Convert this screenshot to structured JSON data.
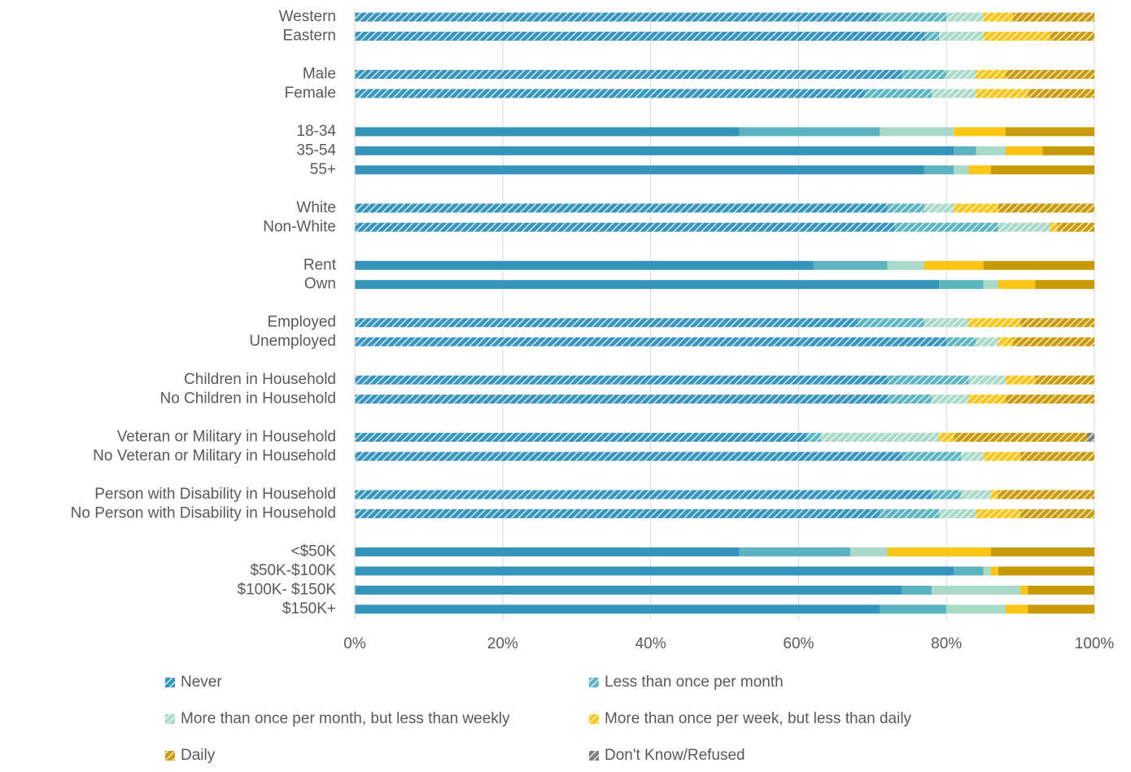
{
  "chart_data": {
    "type": "stacked_bar_horizontal",
    "categories": [
      "Western",
      "Eastern",
      null,
      "Male",
      "Female",
      null,
      "18-34",
      "35-54",
      "55+",
      null,
      "White",
      "Non-White",
      null,
      "Rent",
      "Own",
      null,
      "Employed",
      "Unemployed",
      null,
      "Children in Household",
      "No Children in Household",
      null,
      "Veteran or Military in Household",
      "No Veteran or Military in Household",
      null,
      "Person with Disability in Household",
      "No Person with Disability in Household",
      null,
      "<$50K",
      "$50K-$100K",
      "$100K- $150K",
      "$150K+"
    ],
    "hatched": [
      true,
      true,
      null,
      true,
      true,
      null,
      false,
      false,
      false,
      null,
      true,
      true,
      null,
      false,
      false,
      null,
      true,
      true,
      null,
      true,
      true,
      null,
      true,
      true,
      null,
      true,
      true,
      null,
      false,
      false,
      false,
      false
    ],
    "series": [
      {
        "name": "Never",
        "color": "#3594ba",
        "values": [
          71,
          77,
          null,
          74,
          69,
          null,
          52,
          81,
          77,
          null,
          72,
          73,
          null,
          62,
          79,
          null,
          68,
          80,
          null,
          72,
          72,
          null,
          61,
          74,
          null,
          78,
          71,
          null,
          52,
          81,
          74,
          71
        ]
      },
      {
        "name": "Less than once per month",
        "color": "#5bb4c0",
        "values": [
          9,
          2,
          null,
          6,
          9,
          null,
          19,
          3,
          4,
          null,
          5,
          14,
          null,
          10,
          6,
          null,
          9,
          4,
          null,
          11,
          6,
          null,
          2,
          8,
          null,
          4,
          8,
          null,
          15,
          4,
          4,
          9
        ]
      },
      {
        "name": "More than once per month, but less than weekly",
        "color": "#a9d9c7",
        "values": [
          5,
          6,
          null,
          4,
          6,
          null,
          10,
          4,
          2,
          null,
          4,
          7,
          null,
          5,
          2,
          null,
          6,
          3,
          null,
          5,
          5,
          null,
          16,
          3,
          null,
          4,
          5,
          null,
          5,
          1,
          12,
          8
        ]
      },
      {
        "name": "More than once per week, but less than daily",
        "color": "#fbc515",
        "values": [
          4,
          9,
          null,
          4,
          7,
          null,
          7,
          5,
          3,
          null,
          6,
          1,
          null,
          8,
          5,
          null,
          7,
          2,
          null,
          4,
          5,
          null,
          2,
          5,
          null,
          1,
          6,
          null,
          14,
          1,
          1,
          3
        ]
      },
      {
        "name": "Daily",
        "color": "#c99a08",
        "values": [
          11,
          6,
          null,
          12,
          9,
          null,
          12,
          7,
          14,
          null,
          13,
          5,
          null,
          15,
          8,
          null,
          10,
          11,
          null,
          8,
          12,
          null,
          18,
          10,
          null,
          13,
          10,
          null,
          14,
          13,
          9,
          9
        ]
      },
      {
        "name": "Don't Know/Refused",
        "color": "#7f7f7f",
        "values": [
          0,
          0,
          null,
          0,
          0,
          null,
          0,
          0,
          0,
          null,
          0,
          0,
          null,
          0,
          0,
          null,
          0,
          0,
          null,
          0,
          0,
          null,
          1,
          0,
          null,
          0,
          0,
          null,
          0,
          0,
          0,
          0
        ]
      }
    ],
    "xlim": [
      0,
      100
    ],
    "xticks": [
      {
        "value": 0,
        "label": "0%"
      },
      {
        "value": 20,
        "label": "20%"
      },
      {
        "value": 40,
        "label": "40%"
      },
      {
        "value": 60,
        "label": "60%"
      },
      {
        "value": 80,
        "label": "80%"
      },
      {
        "value": 100,
        "label": "100%"
      }
    ],
    "grid": true
  }
}
